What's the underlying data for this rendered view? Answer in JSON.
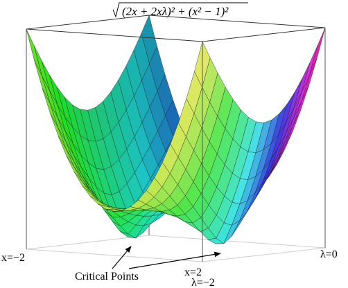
{
  "chart_data": {
    "type": "surface",
    "title": "√(2x + 2xλ)² + (x² − 1)²",
    "axis_labels": {
      "x_min": "x=−2",
      "x_max": "x=2",
      "lambda_min": "λ=−2",
      "lambda_max": "λ=0"
    },
    "annotation": "Critical Points"
  }
}
